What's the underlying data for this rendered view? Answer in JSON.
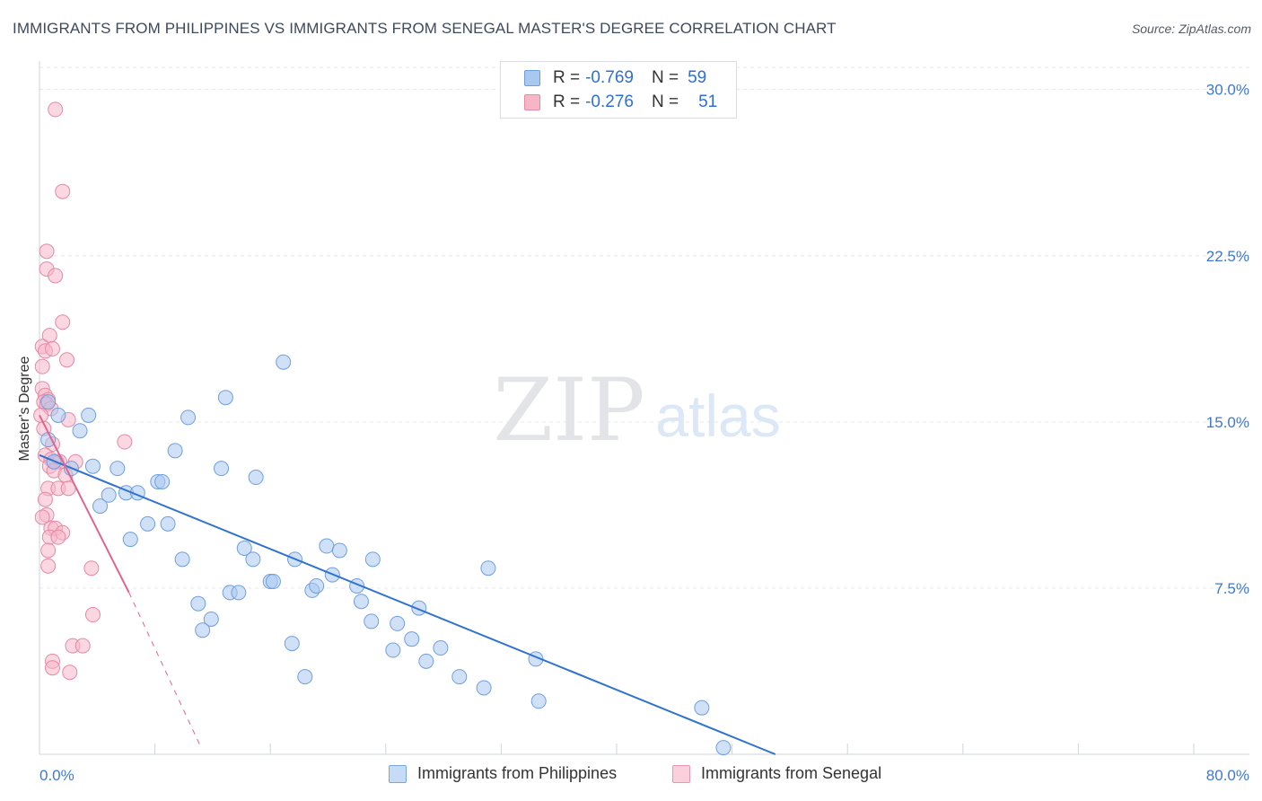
{
  "title": "IMMIGRANTS FROM PHILIPPINES VS IMMIGRANTS FROM SENEGAL MASTER'S DEGREE CORRELATION CHART",
  "source": "Source: ZipAtlas.com",
  "watermark": {
    "zip": "ZIP",
    "atlas": "atlas"
  },
  "legend": {
    "r_label": "R =",
    "n_label": "N =",
    "rows": [
      {
        "r": "-0.769",
        "n": "59",
        "color": "#a9c8f0",
        "stroke": "#6a9fe0"
      },
      {
        "r": "-0.276",
        "n": "51",
        "color": "#f7b6c8",
        "stroke": "#e68aa6"
      }
    ]
  },
  "bottom_legend": [
    {
      "label": "Immigrants from Philippines",
      "color": "#c6dbf5",
      "stroke": "#7aa6e0"
    },
    {
      "label": "Immigrants from Senegal",
      "color": "#fbd0dc",
      "stroke": "#e996b0"
    }
  ],
  "colors": {
    "blue_fill": "#a9c8f0",
    "blue_stroke": "#6e9fdf",
    "blue_line": "#2f72d0",
    "pink_fill": "#f7b6c8",
    "pink_stroke": "#e48aa6",
    "pink_line": "#e0648e",
    "tick_label": "#3f78cc",
    "grid": "#e3e6ea",
    "axis": "#cfd4da"
  },
  "chart_data": {
    "type": "scatter",
    "title": "IMMIGRANTS FROM PHILIPPINES VS IMMIGRANTS FROM SENEGAL MASTER'S DEGREE CORRELATION CHART",
    "xlabel": "",
    "ylabel": "Master's Degree",
    "xlim": [
      0,
      80
    ],
    "ylim": [
      0,
      31
    ],
    "x_tick_labels": [
      "0.0%",
      "80.0%"
    ],
    "y_ticks": [
      7.5,
      15.0,
      22.5,
      30.0
    ],
    "y_tick_labels": [
      "7.5%",
      "15.0%",
      "22.5%",
      "30.0%"
    ],
    "grid": true,
    "series": [
      {
        "name": "Immigrants from Philippines",
        "r": -0.769,
        "n": 59,
        "trend": {
          "x": [
            0,
            51
          ],
          "y": [
            13.5,
            0
          ]
        },
        "points": [
          [
            0.6,
            15.9
          ],
          [
            1.3,
            15.3
          ],
          [
            3.4,
            15.3
          ],
          [
            2.8,
            14.6
          ],
          [
            0.6,
            14.2
          ],
          [
            2.2,
            12.9
          ],
          [
            3.7,
            13.0
          ],
          [
            5.4,
            12.9
          ],
          [
            4.2,
            11.2
          ],
          [
            4.8,
            11.7
          ],
          [
            6.0,
            11.8
          ],
          [
            6.8,
            11.8
          ],
          [
            8.2,
            12.3
          ],
          [
            8.5,
            12.3
          ],
          [
            9.4,
            13.7
          ],
          [
            10.3,
            15.2
          ],
          [
            12.6,
            12.9
          ],
          [
            12.9,
            16.1
          ],
          [
            15.0,
            12.5
          ],
          [
            16.9,
            17.7
          ],
          [
            7.5,
            10.4
          ],
          [
            8.9,
            10.4
          ],
          [
            6.3,
            9.7
          ],
          [
            9.9,
            8.8
          ],
          [
            14.2,
            9.3
          ],
          [
            14.8,
            8.8
          ],
          [
            17.7,
            8.8
          ],
          [
            19.9,
            9.4
          ],
          [
            20.8,
            9.2
          ],
          [
            23.1,
            8.8
          ],
          [
            16.0,
            7.8
          ],
          [
            16.2,
            7.8
          ],
          [
            18.9,
            7.4
          ],
          [
            19.2,
            7.6
          ],
          [
            20.3,
            8.1
          ],
          [
            22.0,
            7.6
          ],
          [
            22.3,
            6.9
          ],
          [
            11.0,
            6.8
          ],
          [
            11.9,
            6.1
          ],
          [
            11.3,
            5.6
          ],
          [
            13.2,
            7.3
          ],
          [
            13.8,
            7.3
          ],
          [
            23.0,
            6.0
          ],
          [
            24.8,
            5.9
          ],
          [
            25.8,
            5.2
          ],
          [
            26.3,
            6.6
          ],
          [
            24.5,
            4.7
          ],
          [
            27.8,
            4.8
          ],
          [
            26.8,
            4.2
          ],
          [
            29.1,
            3.5
          ],
          [
            17.5,
            5.0
          ],
          [
            18.4,
            3.5
          ],
          [
            30.8,
            3.0
          ],
          [
            31.1,
            8.4
          ],
          [
            34.4,
            4.3
          ],
          [
            34.6,
            2.4
          ],
          [
            45.9,
            2.1
          ],
          [
            47.4,
            0.3
          ],
          [
            1.0,
            13.2
          ]
        ]
      },
      {
        "name": "Immigrants from Senegal",
        "r": -0.276,
        "n": 51,
        "trend": {
          "x": [
            0,
            6.2
          ],
          "y": [
            15.3,
            7.3
          ]
        },
        "trend_extension": {
          "x": [
            6.2,
            11.2
          ],
          "y": [
            7.3,
            0.3
          ]
        },
        "points": [
          [
            1.1,
            29.1
          ],
          [
            1.6,
            25.4
          ],
          [
            0.5,
            22.7
          ],
          [
            0.5,
            21.9
          ],
          [
            1.1,
            21.6
          ],
          [
            1.6,
            19.5
          ],
          [
            0.7,
            18.9
          ],
          [
            0.2,
            18.4
          ],
          [
            0.4,
            18.2
          ],
          [
            0.9,
            18.3
          ],
          [
            1.9,
            17.8
          ],
          [
            0.2,
            17.5
          ],
          [
            0.2,
            16.5
          ],
          [
            0.4,
            16.2
          ],
          [
            0.6,
            16.0
          ],
          [
            0.3,
            15.9
          ],
          [
            0.5,
            15.8
          ],
          [
            0.8,
            15.6
          ],
          [
            0.1,
            15.3
          ],
          [
            2.0,
            15.1
          ],
          [
            0.3,
            14.7
          ],
          [
            5.9,
            14.1
          ],
          [
            0.9,
            14.0
          ],
          [
            0.4,
            13.5
          ],
          [
            0.8,
            13.3
          ],
          [
            1.2,
            13.2
          ],
          [
            1.4,
            13.2
          ],
          [
            2.5,
            13.2
          ],
          [
            0.7,
            13.0
          ],
          [
            1.0,
            12.8
          ],
          [
            1.8,
            12.6
          ],
          [
            0.6,
            12.0
          ],
          [
            1.3,
            12.0
          ],
          [
            2.0,
            12.0
          ],
          [
            0.4,
            11.5
          ],
          [
            0.5,
            10.8
          ],
          [
            0.2,
            10.7
          ],
          [
            0.8,
            10.2
          ],
          [
            1.1,
            10.2
          ],
          [
            1.6,
            10.0
          ],
          [
            0.7,
            9.8
          ],
          [
            1.3,
            9.8
          ],
          [
            0.6,
            9.2
          ],
          [
            0.6,
            8.5
          ],
          [
            3.6,
            8.4
          ],
          [
            3.7,
            6.3
          ],
          [
            2.3,
            4.9
          ],
          [
            3.0,
            4.9
          ],
          [
            0.9,
            4.2
          ],
          [
            0.9,
            3.9
          ],
          [
            2.1,
            3.7
          ]
        ]
      }
    ]
  }
}
